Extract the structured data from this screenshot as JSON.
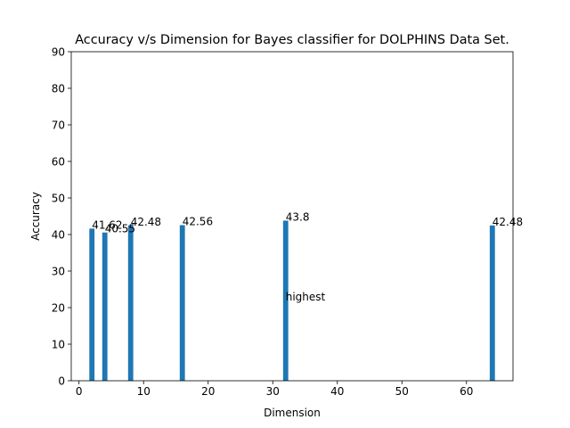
{
  "chart_data": {
    "type": "bar",
    "title": "Accuracy v/s Dimension for Bayes classifier for DOLPHINS Data Set.",
    "xlabel": "Dimension",
    "ylabel": "Accuracy",
    "x": [
      2,
      4,
      8,
      16,
      32,
      64
    ],
    "values": [
      41.62,
      40.55,
      42.48,
      42.56,
      43.8,
      42.48
    ],
    "data_labels": [
      "41.62",
      "40.55",
      "42.48",
      "42.56",
      "43.8",
      "42.48"
    ],
    "xlim": [
      -1.2,
      67.2
    ],
    "ylim": [
      0,
      90
    ],
    "xticks": [
      0,
      10,
      20,
      30,
      40,
      50,
      60
    ],
    "yticks": [
      0,
      10,
      20,
      30,
      40,
      50,
      60,
      70,
      80,
      90
    ],
    "bar_color": "#1f77b4",
    "grid": false,
    "annotations": [
      {
        "text": "highest",
        "x": 32,
        "y": 21.9
      }
    ]
  }
}
